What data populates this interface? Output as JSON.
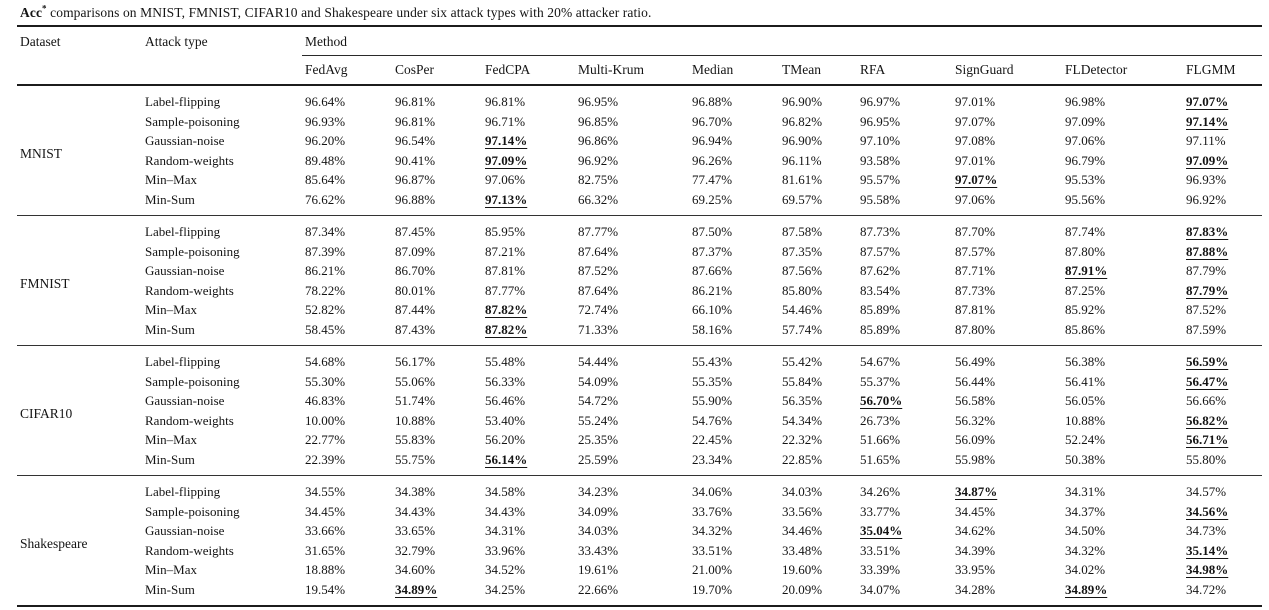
{
  "caption": {
    "bold_prefix": "Acc",
    "superscript": "*",
    "text": " comparisons on MNIST, FMNIST, CIFAR10 and Shakespeare under six attack types with 20% attacker ratio."
  },
  "table": {
    "dataset_header": "Dataset",
    "attack_type_header": "Attack type",
    "method_header": "Method",
    "methods": [
      "FedAvg",
      "CosPer",
      "FedCPA",
      "Multi-Krum",
      "Median",
      "TMean",
      "RFA",
      "SignGuard",
      "FLDetector",
      "FLGMM"
    ],
    "groups": [
      {
        "dataset": "MNIST",
        "rows": [
          {
            "attack": "Label-flipping",
            "values": [
              "96.64%",
              "96.81%",
              "96.81%",
              "96.95%",
              "96.88%",
              "96.90%",
              "96.97%",
              "97.01%",
              "96.98%",
              "97.07%"
            ],
            "best": [
              9
            ]
          },
          {
            "attack": "Sample-poisoning",
            "values": [
              "96.93%",
              "96.81%",
              "96.71%",
              "96.85%",
              "96.70%",
              "96.82%",
              "96.95%",
              "97.07%",
              "97.09%",
              "97.14%"
            ],
            "best": [
              9
            ]
          },
          {
            "attack": "Gaussian-noise",
            "values": [
              "96.20%",
              "96.54%",
              "97.14%",
              "96.86%",
              "96.94%",
              "96.90%",
              "97.10%",
              "97.08%",
              "97.06%",
              "97.11%"
            ],
            "best": [
              2
            ]
          },
          {
            "attack": "Random-weights",
            "values": [
              "89.48%",
              "90.41%",
              "97.09%",
              "96.92%",
              "96.26%",
              "96.11%",
              "93.58%",
              "97.01%",
              "96.79%",
              "97.09%"
            ],
            "best": [
              2,
              9
            ]
          },
          {
            "attack": "Min–Max",
            "values": [
              "85.64%",
              "96.87%",
              "97.06%",
              "82.75%",
              "77.47%",
              "81.61%",
              "95.57%",
              "97.07%",
              "95.53%",
              "96.93%"
            ],
            "best": [
              7
            ]
          },
          {
            "attack": "Min-Sum",
            "values": [
              "76.62%",
              "96.88%",
              "97.13%",
              "66.32%",
              "69.25%",
              "69.57%",
              "95.58%",
              "97.06%",
              "95.56%",
              "96.92%"
            ],
            "best": [
              2
            ]
          }
        ]
      },
      {
        "dataset": "FMNIST",
        "rows": [
          {
            "attack": "Label-flipping",
            "values": [
              "87.34%",
              "87.45%",
              "85.95%",
              "87.77%",
              "87.50%",
              "87.58%",
              "87.73%",
              "87.70%",
              "87.74%",
              "87.83%"
            ],
            "best": [
              9
            ]
          },
          {
            "attack": "Sample-poisoning",
            "values": [
              "87.39%",
              "87.09%",
              "87.21%",
              "87.64%",
              "87.37%",
              "87.35%",
              "87.57%",
              "87.57%",
              "87.80%",
              "87.88%"
            ],
            "best": [
              9
            ]
          },
          {
            "attack": "Gaussian-noise",
            "values": [
              "86.21%",
              "86.70%",
              "87.81%",
              "87.52%",
              "87.66%",
              "87.56%",
              "87.62%",
              "87.71%",
              "87.91%",
              "87.79%"
            ],
            "best": [
              8
            ]
          },
          {
            "attack": "Random-weights",
            "values": [
              "78.22%",
              "80.01%",
              "87.77%",
              "87.64%",
              "86.21%",
              "85.80%",
              "83.54%",
              "87.73%",
              "87.25%",
              "87.79%"
            ],
            "best": [
              9
            ]
          },
          {
            "attack": "Min–Max",
            "values": [
              "52.82%",
              "87.44%",
              "87.82%",
              "72.74%",
              "66.10%",
              "54.46%",
              "85.89%",
              "87.81%",
              "85.92%",
              "87.52%"
            ],
            "best": [
              2
            ]
          },
          {
            "attack": "Min-Sum",
            "values": [
              "58.45%",
              "87.43%",
              "87.82%",
              "71.33%",
              "58.16%",
              "57.74%",
              "85.89%",
              "87.80%",
              "85.86%",
              "87.59%"
            ],
            "best": [
              2
            ]
          }
        ]
      },
      {
        "dataset": "CIFAR10",
        "rows": [
          {
            "attack": "Label-flipping",
            "values": [
              "54.68%",
              "56.17%",
              "55.48%",
              "54.44%",
              "55.43%",
              "55.42%",
              "54.67%",
              "56.49%",
              "56.38%",
              "56.59%"
            ],
            "best": [
              9
            ]
          },
          {
            "attack": "Sample-poisoning",
            "values": [
              "55.30%",
              "55.06%",
              "56.33%",
              "54.09%",
              "55.35%",
              "55.84%",
              "55.37%",
              "56.44%",
              "56.41%",
              "56.47%"
            ],
            "best": [
              9
            ]
          },
          {
            "attack": "Gaussian-noise",
            "values": [
              "46.83%",
              "51.74%",
              "56.46%",
              "54.72%",
              "55.90%",
              "56.35%",
              "56.70%",
              "56.58%",
              "56.05%",
              "56.66%"
            ],
            "best": [
              6
            ]
          },
          {
            "attack": "Random-weights",
            "values": [
              "10.00%",
              "10.88%",
              "53.40%",
              "55.24%",
              "54.76%",
              "54.34%",
              "26.73%",
              "56.32%",
              "10.88%",
              "56.82%"
            ],
            "best": [
              9
            ]
          },
          {
            "attack": "Min–Max",
            "values": [
              "22.77%",
              "55.83%",
              "56.20%",
              "25.35%",
              "22.45%",
              "22.32%",
              "51.66%",
              "56.09%",
              "52.24%",
              "56.71%"
            ],
            "best": [
              9
            ]
          },
          {
            "attack": "Min-Sum",
            "values": [
              "22.39%",
              "55.75%",
              "56.14%",
              "25.59%",
              "23.34%",
              "22.85%",
              "51.65%",
              "55.98%",
              "50.38%",
              "55.80%"
            ],
            "best": [
              2
            ]
          }
        ]
      },
      {
        "dataset": "Shakespeare",
        "rows": [
          {
            "attack": "Label-flipping",
            "values": [
              "34.55%",
              "34.38%",
              "34.58%",
              "34.23%",
              "34.06%",
              "34.03%",
              "34.26%",
              "34.87%",
              "34.31%",
              "34.57%"
            ],
            "best": [
              7
            ]
          },
          {
            "attack": "Sample-poisoning",
            "values": [
              "34.45%",
              "34.43%",
              "34.43%",
              "34.09%",
              "33.76%",
              "33.56%",
              "33.77%",
              "34.45%",
              "34.37%",
              "34.56%"
            ],
            "best": [
              9
            ]
          },
          {
            "attack": "Gaussian-noise",
            "values": [
              "33.66%",
              "33.65%",
              "34.31%",
              "34.03%",
              "34.32%",
              "34.46%",
              "35.04%",
              "34.62%",
              "34.50%",
              "34.73%"
            ],
            "best": [
              6
            ]
          },
          {
            "attack": "Random-weights",
            "values": [
              "31.65%",
              "32.79%",
              "33.96%",
              "33.43%",
              "33.51%",
              "33.48%",
              "33.51%",
              "34.39%",
              "34.32%",
              "35.14%"
            ],
            "best": [
              9
            ]
          },
          {
            "attack": "Min–Max",
            "values": [
              "18.88%",
              "34.60%",
              "34.52%",
              "19.61%",
              "21.00%",
              "19.60%",
              "33.39%",
              "33.95%",
              "34.02%",
              "34.98%"
            ],
            "best": [
              9
            ]
          },
          {
            "attack": "Min-Sum",
            "values": [
              "19.54%",
              "34.89%",
              "34.25%",
              "22.66%",
              "19.70%",
              "20.09%",
              "34.07%",
              "34.28%",
              "34.89%",
              "34.72%"
            ],
            "best": [
              1,
              8
            ]
          }
        ]
      }
    ]
  }
}
